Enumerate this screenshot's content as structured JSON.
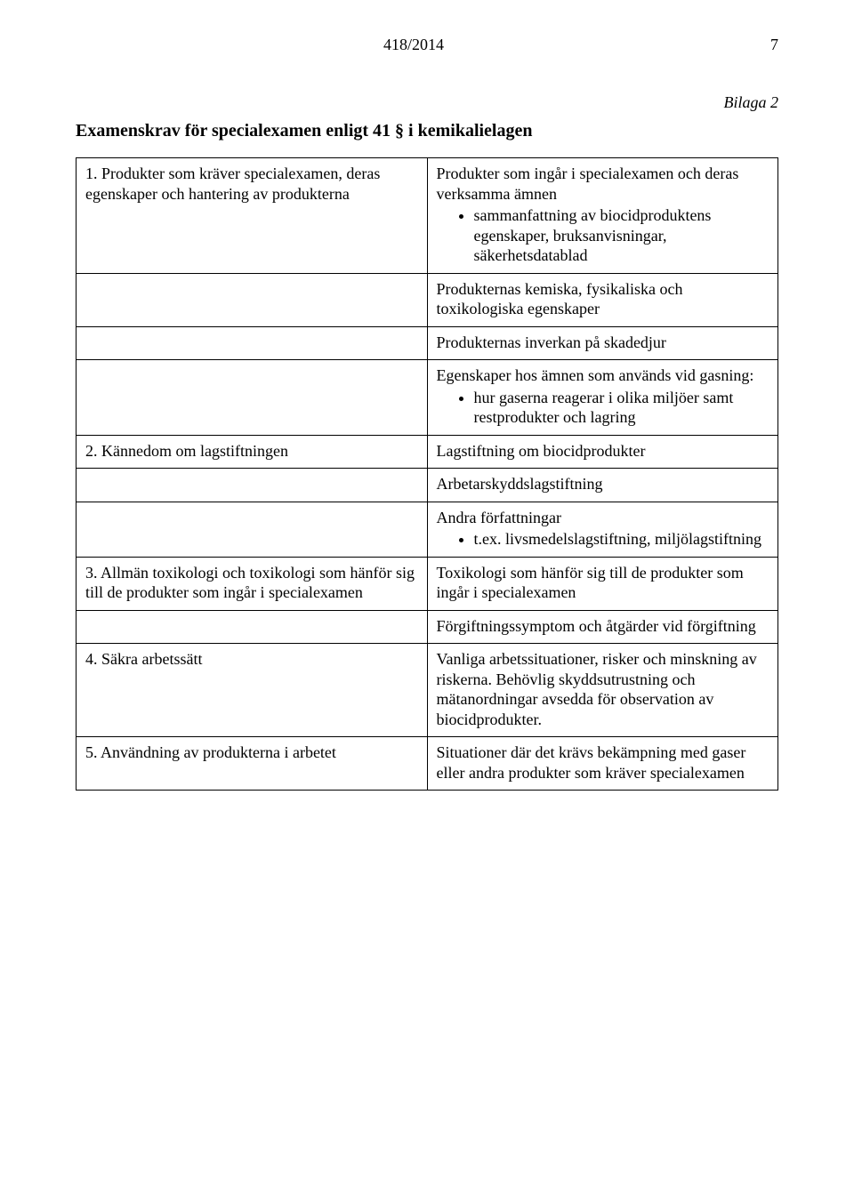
{
  "header": {
    "doc_number": "418/2014",
    "page_number": "7"
  },
  "bilaga": "Bilaga 2",
  "title": "Examenskrav för specialexamen enligt 41 § i kemikalielagen",
  "rows": [
    {
      "left_heading": "1. Produkter som kräver specialexamen, deras egenskaper och hantering av produkterna",
      "right_heading": "Produkter som ingår i specialexamen och deras verksamma ämnen",
      "bullets": [
        "sammanfattning av biocidproduktens egenskaper, bruksanvisningar, säkerhetsdatablad"
      ]
    },
    {
      "left_heading": "",
      "right_heading": "Produkternas kemiska, fysikaliska och toxikologiska egenskaper",
      "bullets": []
    },
    {
      "left_heading": "",
      "right_heading": "Produkternas inverkan på skadedjur",
      "bullets": []
    },
    {
      "left_heading": "",
      "right_heading": "Egenskaper hos ämnen som används vid gasning:",
      "bullets": [
        "hur gaserna reagerar i olika miljöer samt restprodukter och lagring"
      ]
    },
    {
      "left_heading": "2. Kännedom om lagstiftningen",
      "right_heading": "Lagstiftning om biocidprodukter",
      "bullets": []
    },
    {
      "left_heading": "",
      "right_heading": "Arbetarskyddslagstiftning",
      "bullets": []
    },
    {
      "left_heading": "",
      "right_heading": "Andra författningar",
      "bullets": [
        "t.ex. livsmedelslagstiftning, miljölagstiftning"
      ]
    },
    {
      "left_heading": "3. Allmän toxikologi och toxikologi som hänför sig till de produkter som ingår i specialexamen",
      "right_heading": "Toxikologi som hänför sig till de produkter som ingår i specialexamen",
      "bullets": []
    },
    {
      "left_heading": "",
      "right_heading": "Förgiftningssymptom och åtgärder vid förgiftning",
      "bullets": []
    },
    {
      "left_heading": "4. Säkra arbetssätt",
      "right_heading": "Vanliga arbetssituationer, risker och minskning av riskerna. Behövlig skyddsutrustning och mätanordningar avsedda för observation av biocidprodukter.",
      "bullets": []
    },
    {
      "left_heading": "5. Användning av produkterna i arbetet",
      "right_heading": "Situationer där det krävs bekämpning med gaser eller andra produkter som kräver specialexamen",
      "bullets": []
    }
  ]
}
